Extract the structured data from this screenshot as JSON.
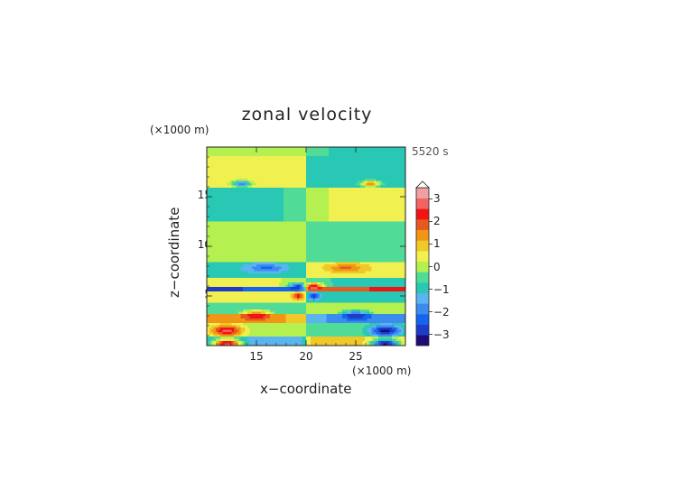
{
  "chart_data": {
    "type": "heatmap",
    "title": "zonal velocity",
    "xlabel": "x−coordinate",
    "ylabel": "z−coordinate",
    "x_unit": "(×1000 m)",
    "z_unit": "(×1000 m)",
    "time_label": "5520 s",
    "xlim": [
      10,
      30
    ],
    "ylim": [
      0,
      20
    ],
    "x_ticks": [
      "15",
      "20",
      "25"
    ],
    "y_ticks": [
      "5",
      "10",
      "15"
    ],
    "colorbar": {
      "ticks": [
        "3",
        "2",
        "1",
        "0",
        "−1",
        "−2",
        "−3"
      ],
      "tick_values": [
        3,
        2,
        1,
        0,
        -1,
        -2,
        -3
      ],
      "range": [
        -3.5,
        3.5
      ],
      "step": 0.5,
      "extend_top": true,
      "colors": [
        "#1e0a78",
        "#1e3cc8",
        "#1464f0",
        "#3c8cf0",
        "#5ab4f0",
        "#28c8b4",
        "#50dc96",
        "#b4f050",
        "#f0f050",
        "#f0c828",
        "#f09614",
        "#e65a1e",
        "#f01414",
        "#f06464",
        "#f0a0a0"
      ]
    },
    "bands": [
      {
        "z": [
          19.2,
          20.0
        ],
        "left": 0.4,
        "right": -0.6
      },
      {
        "z": [
          16.0,
          19.2
        ],
        "left": 0.9,
        "right": -0.9
      },
      {
        "z": [
          12.5,
          16.0
        ],
        "left": -0.6,
        "right": 0.6
      },
      {
        "z": [
          8.5,
          12.5
        ],
        "left": 0.5,
        "right": -0.5
      },
      {
        "z": [
          6.9,
          8.5
        ],
        "left": -0.8,
        "right": 0.8
      },
      {
        "z": [
          6.0,
          6.9
        ],
        "left": 0.6,
        "right": -0.6
      },
      {
        "z": [
          5.4,
          6.0
        ],
        "left": -2.6,
        "right": 2.6
      },
      {
        "z": [
          4.4,
          5.4
        ],
        "left": 1.0,
        "right": -1.0
      },
      {
        "z": [
          3.2,
          4.4
        ],
        "left": -0.3,
        "right": 0.3
      },
      {
        "z": [
          2.2,
          3.2
        ],
        "left": 1.8,
        "right": -1.8
      },
      {
        "z": [
          0.9,
          2.2
        ],
        "left": 0.2,
        "right": -0.2
      },
      {
        "z": [
          0.0,
          0.9
        ],
        "left": -1.3,
        "right": 1.3
      }
    ],
    "features": [
      {
        "x": 12.0,
        "z": 1.5,
        "rx": 1.6,
        "rz": 0.6,
        "v": 3.2
      },
      {
        "x": 28.0,
        "z": 1.5,
        "rx": 1.6,
        "rz": 0.6,
        "v": -3.2
      },
      {
        "x": 12.0,
        "z": 0.2,
        "rx": 1.4,
        "rz": 0.4,
        "v": 3.4
      },
      {
        "x": 28.0,
        "z": 0.2,
        "rx": 1.4,
        "rz": 0.4,
        "v": -3.4
      },
      {
        "x": 15.0,
        "z": 3.0,
        "rx": 1.3,
        "rz": 0.45,
        "v": 3.0
      },
      {
        "x": 25.0,
        "z": 3.0,
        "rx": 1.3,
        "rz": 0.45,
        "v": -3.0
      },
      {
        "x": 19.3,
        "z": 5.9,
        "rx": 0.9,
        "rz": 0.4,
        "v": -3.4
      },
      {
        "x": 20.7,
        "z": 5.9,
        "rx": 0.9,
        "rz": 0.4,
        "v": 3.4
      },
      {
        "x": 19.2,
        "z": 5.0,
        "rx": 0.5,
        "rz": 0.35,
        "v": 3.0
      },
      {
        "x": 20.8,
        "z": 5.0,
        "rx": 0.5,
        "rz": 0.35,
        "v": -3.0
      },
      {
        "x": 16.0,
        "z": 7.8,
        "rx": 2.0,
        "rz": 0.45,
        "v": -2.1
      },
      {
        "x": 24.0,
        "z": 7.8,
        "rx": 2.0,
        "rz": 0.45,
        "v": 2.1
      },
      {
        "x": 13.5,
        "z": 16.3,
        "rx": 1.0,
        "rz": 0.3,
        "v": -2.0
      },
      {
        "x": 26.5,
        "z": 16.3,
        "rx": 1.0,
        "rz": 0.3,
        "v": 2.0
      }
    ]
  }
}
